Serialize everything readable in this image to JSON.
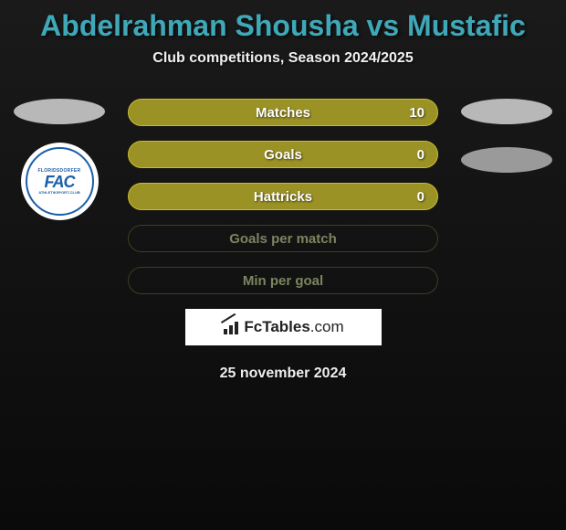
{
  "title": "Abdelrahman Shousha vs Mustafic",
  "subtitle": "Club competitions, Season 2024/2025",
  "badge": {
    "top": "FLORIDSDORFER",
    "main": "FAC",
    "middle": "WIEN",
    "bottom": "ATHLETIKSPORT-CLUB"
  },
  "stats": [
    {
      "label": "Matches",
      "value": "10",
      "has_value": true,
      "filled": true
    },
    {
      "label": "Goals",
      "value": "0",
      "has_value": true,
      "filled": true
    },
    {
      "label": "Hattricks",
      "value": "0",
      "has_value": true,
      "filled": true
    },
    {
      "label": "Goals per match",
      "value": "",
      "has_value": false,
      "filled": false
    },
    {
      "label": "Min per goal",
      "value": "",
      "has_value": false,
      "filled": false
    }
  ],
  "branding": {
    "name": "FcTables",
    "suffix": ".com"
  },
  "date": "25 november 2024",
  "colors": {
    "title": "#3fa8b8",
    "bar_fill": "#9b9225",
    "bar_border": "#c9bc30",
    "badge_blue": "#1a5fa8"
  }
}
